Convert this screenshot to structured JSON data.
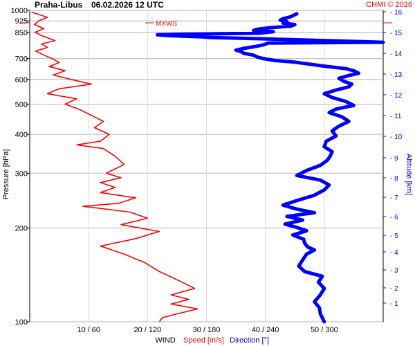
{
  "header": {
    "station": "Praha-Libus",
    "datetime": "06.02.2026 12 UTC",
    "credit": "CHMI © 2026"
  },
  "chart_data": {
    "type": "line",
    "y_axis": {
      "label": "Pressure [hPa]",
      "scale": "log",
      "range": [
        1000,
        100
      ],
      "ticks": [
        100,
        200,
        300,
        400,
        500,
        600,
        700,
        850,
        925,
        1000
      ]
    },
    "y2_axis": {
      "label": "Altitude [km]",
      "ticks": [
        1,
        2,
        3,
        4,
        5,
        6,
        7,
        8,
        9,
        10,
        11,
        12,
        13,
        14,
        15,
        16
      ]
    },
    "x_axis": {
      "label": "WIND",
      "speed_label": "Speed [m/s]",
      "direction_label": "Direction [°]",
      "speed_range": [
        0,
        60
      ],
      "direction_range": [
        0,
        360
      ],
      "ticks": [
        "10 / 60",
        "20 / 120",
        "30 / 180",
        "40 / 240",
        "50 / 300"
      ]
    },
    "marker_label": "MXWS",
    "grid": true,
    "series": [
      {
        "name": "Speed [m/s]",
        "color": "#ff0000",
        "points": [
          [
            987,
            0.3
          ],
          [
            975,
            1.2
          ],
          [
            950,
            3.0
          ],
          [
            925,
            1.5
          ],
          [
            900,
            0.8
          ],
          [
            875,
            2.4
          ],
          [
            850,
            0.9
          ],
          [
            830,
            2.0
          ],
          [
            800,
            4.3
          ],
          [
            780,
            2.0
          ],
          [
            760,
            3.0
          ],
          [
            740,
            1.0
          ],
          [
            720,
            2.3
          ],
          [
            700,
            3.8
          ],
          [
            680,
            5.0
          ],
          [
            660,
            3.3
          ],
          [
            640,
            6.0
          ],
          [
            620,
            4.0
          ],
          [
            600,
            7.0
          ],
          [
            580,
            10.5
          ],
          [
            560,
            5.0
          ],
          [
            540,
            3.0
          ],
          [
            520,
            8.0
          ],
          [
            500,
            6.0
          ],
          [
            480,
            8.5
          ],
          [
            460,
            10.5
          ],
          [
            440,
            12.5
          ],
          [
            420,
            11.0
          ],
          [
            400,
            13.5
          ],
          [
            380,
            12.0
          ],
          [
            370,
            8.0
          ],
          [
            360,
            12.5
          ],
          [
            340,
            14.5
          ],
          [
            320,
            16.0
          ],
          [
            300,
            13.0
          ],
          [
            290,
            15.5
          ],
          [
            280,
            12.0
          ],
          [
            270,
            14.5
          ],
          [
            260,
            12.0
          ],
          [
            250,
            18.0
          ],
          [
            240,
            15.0
          ],
          [
            235,
            9.0
          ],
          [
            225,
            17.0
          ],
          [
            215,
            20.0
          ],
          [
            205,
            15.5
          ],
          [
            195,
            22.0
          ],
          [
            185,
            18.0
          ],
          [
            175,
            12.0
          ],
          [
            165,
            16.0
          ],
          [
            155,
            19.5
          ],
          [
            145,
            22.0
          ],
          [
            135,
            25.5
          ],
          [
            128,
            28.0
          ],
          [
            122,
            24.0
          ],
          [
            118,
            27.0
          ],
          [
            114,
            24.0
          ],
          [
            110,
            28.5
          ],
          [
            106,
            25.0
          ],
          [
            103,
            22.5
          ],
          [
            100,
            22.0
          ]
        ]
      },
      {
        "name": "Direction [°]",
        "color": "#0000ff",
        "points": [
          [
            975,
            272
          ],
          [
            962,
            268
          ],
          [
            952,
            265
          ],
          [
            940,
            258
          ],
          [
            930,
            255
          ],
          [
            920,
            262
          ],
          [
            910,
            258
          ],
          [
            900,
            270
          ],
          [
            890,
            266
          ],
          [
            880,
            245
          ],
          [
            870,
            232
          ],
          [
            862,
            228
          ],
          [
            854,
            248
          ],
          [
            845,
            235
          ],
          [
            835,
            130
          ],
          [
            830,
            140
          ],
          [
            826,
            158
          ],
          [
            822,
            176
          ],
          [
            818,
            185
          ],
          [
            812,
            228
          ],
          [
            790,
            360
          ],
          [
            785,
            243
          ],
          [
            775,
            238
          ],
          [
            765,
            229
          ],
          [
            755,
            218
          ],
          [
            745,
            210
          ],
          [
            738,
            215
          ],
          [
            728,
            218
          ],
          [
            718,
            228
          ],
          [
            708,
            232
          ],
          [
            700,
            238
          ],
          [
            690,
            250
          ],
          [
            682,
            270
          ],
          [
            672,
            285
          ],
          [
            662,
            300
          ],
          [
            650,
            322
          ],
          [
            640,
            330
          ],
          [
            628,
            335
          ],
          [
            618,
            325
          ],
          [
            605,
            315
          ],
          [
            592,
            320
          ],
          [
            580,
            328
          ],
          [
            568,
            325
          ],
          [
            555,
            312
          ],
          [
            540,
            300
          ],
          [
            525,
            308
          ],
          [
            510,
            322
          ],
          [
            495,
            330
          ],
          [
            482,
            312
          ],
          [
            470,
            305
          ],
          [
            455,
            318
          ],
          [
            440,
            325
          ],
          [
            425,
            315
          ],
          [
            410,
            308
          ],
          [
            395,
            312
          ],
          [
            380,
            302
          ],
          [
            365,
            300
          ],
          [
            352,
            308
          ],
          [
            340,
            306
          ],
          [
            330,
            303
          ],
          [
            318,
            296
          ],
          [
            306,
            282
          ],
          [
            295,
            272
          ],
          [
            285,
            296
          ],
          [
            275,
            305
          ],
          [
            265,
            300
          ],
          [
            255,
            290
          ],
          [
            245,
            272
          ],
          [
            237,
            258
          ],
          [
            230,
            272
          ],
          [
            224,
            290
          ],
          [
            218,
            262
          ],
          [
            212,
            278
          ],
          [
            206,
            260
          ],
          [
            201,
            272
          ],
          [
            196,
            282
          ],
          [
            190,
            268
          ],
          [
            184,
            279
          ],
          [
            179,
            280
          ],
          [
            174,
            283
          ],
          [
            170,
            290
          ],
          [
            165,
            282
          ],
          [
            158,
            278
          ],
          [
            151,
            274
          ],
          [
            145,
            280
          ],
          [
            140,
            298
          ],
          [
            134,
            294
          ],
          [
            128,
            300
          ],
          [
            122,
            296
          ],
          [
            116,
            290
          ],
          [
            111,
            295
          ],
          [
            106,
            296
          ],
          [
            103,
            298
          ],
          [
            100,
            300
          ]
        ]
      }
    ]
  }
}
